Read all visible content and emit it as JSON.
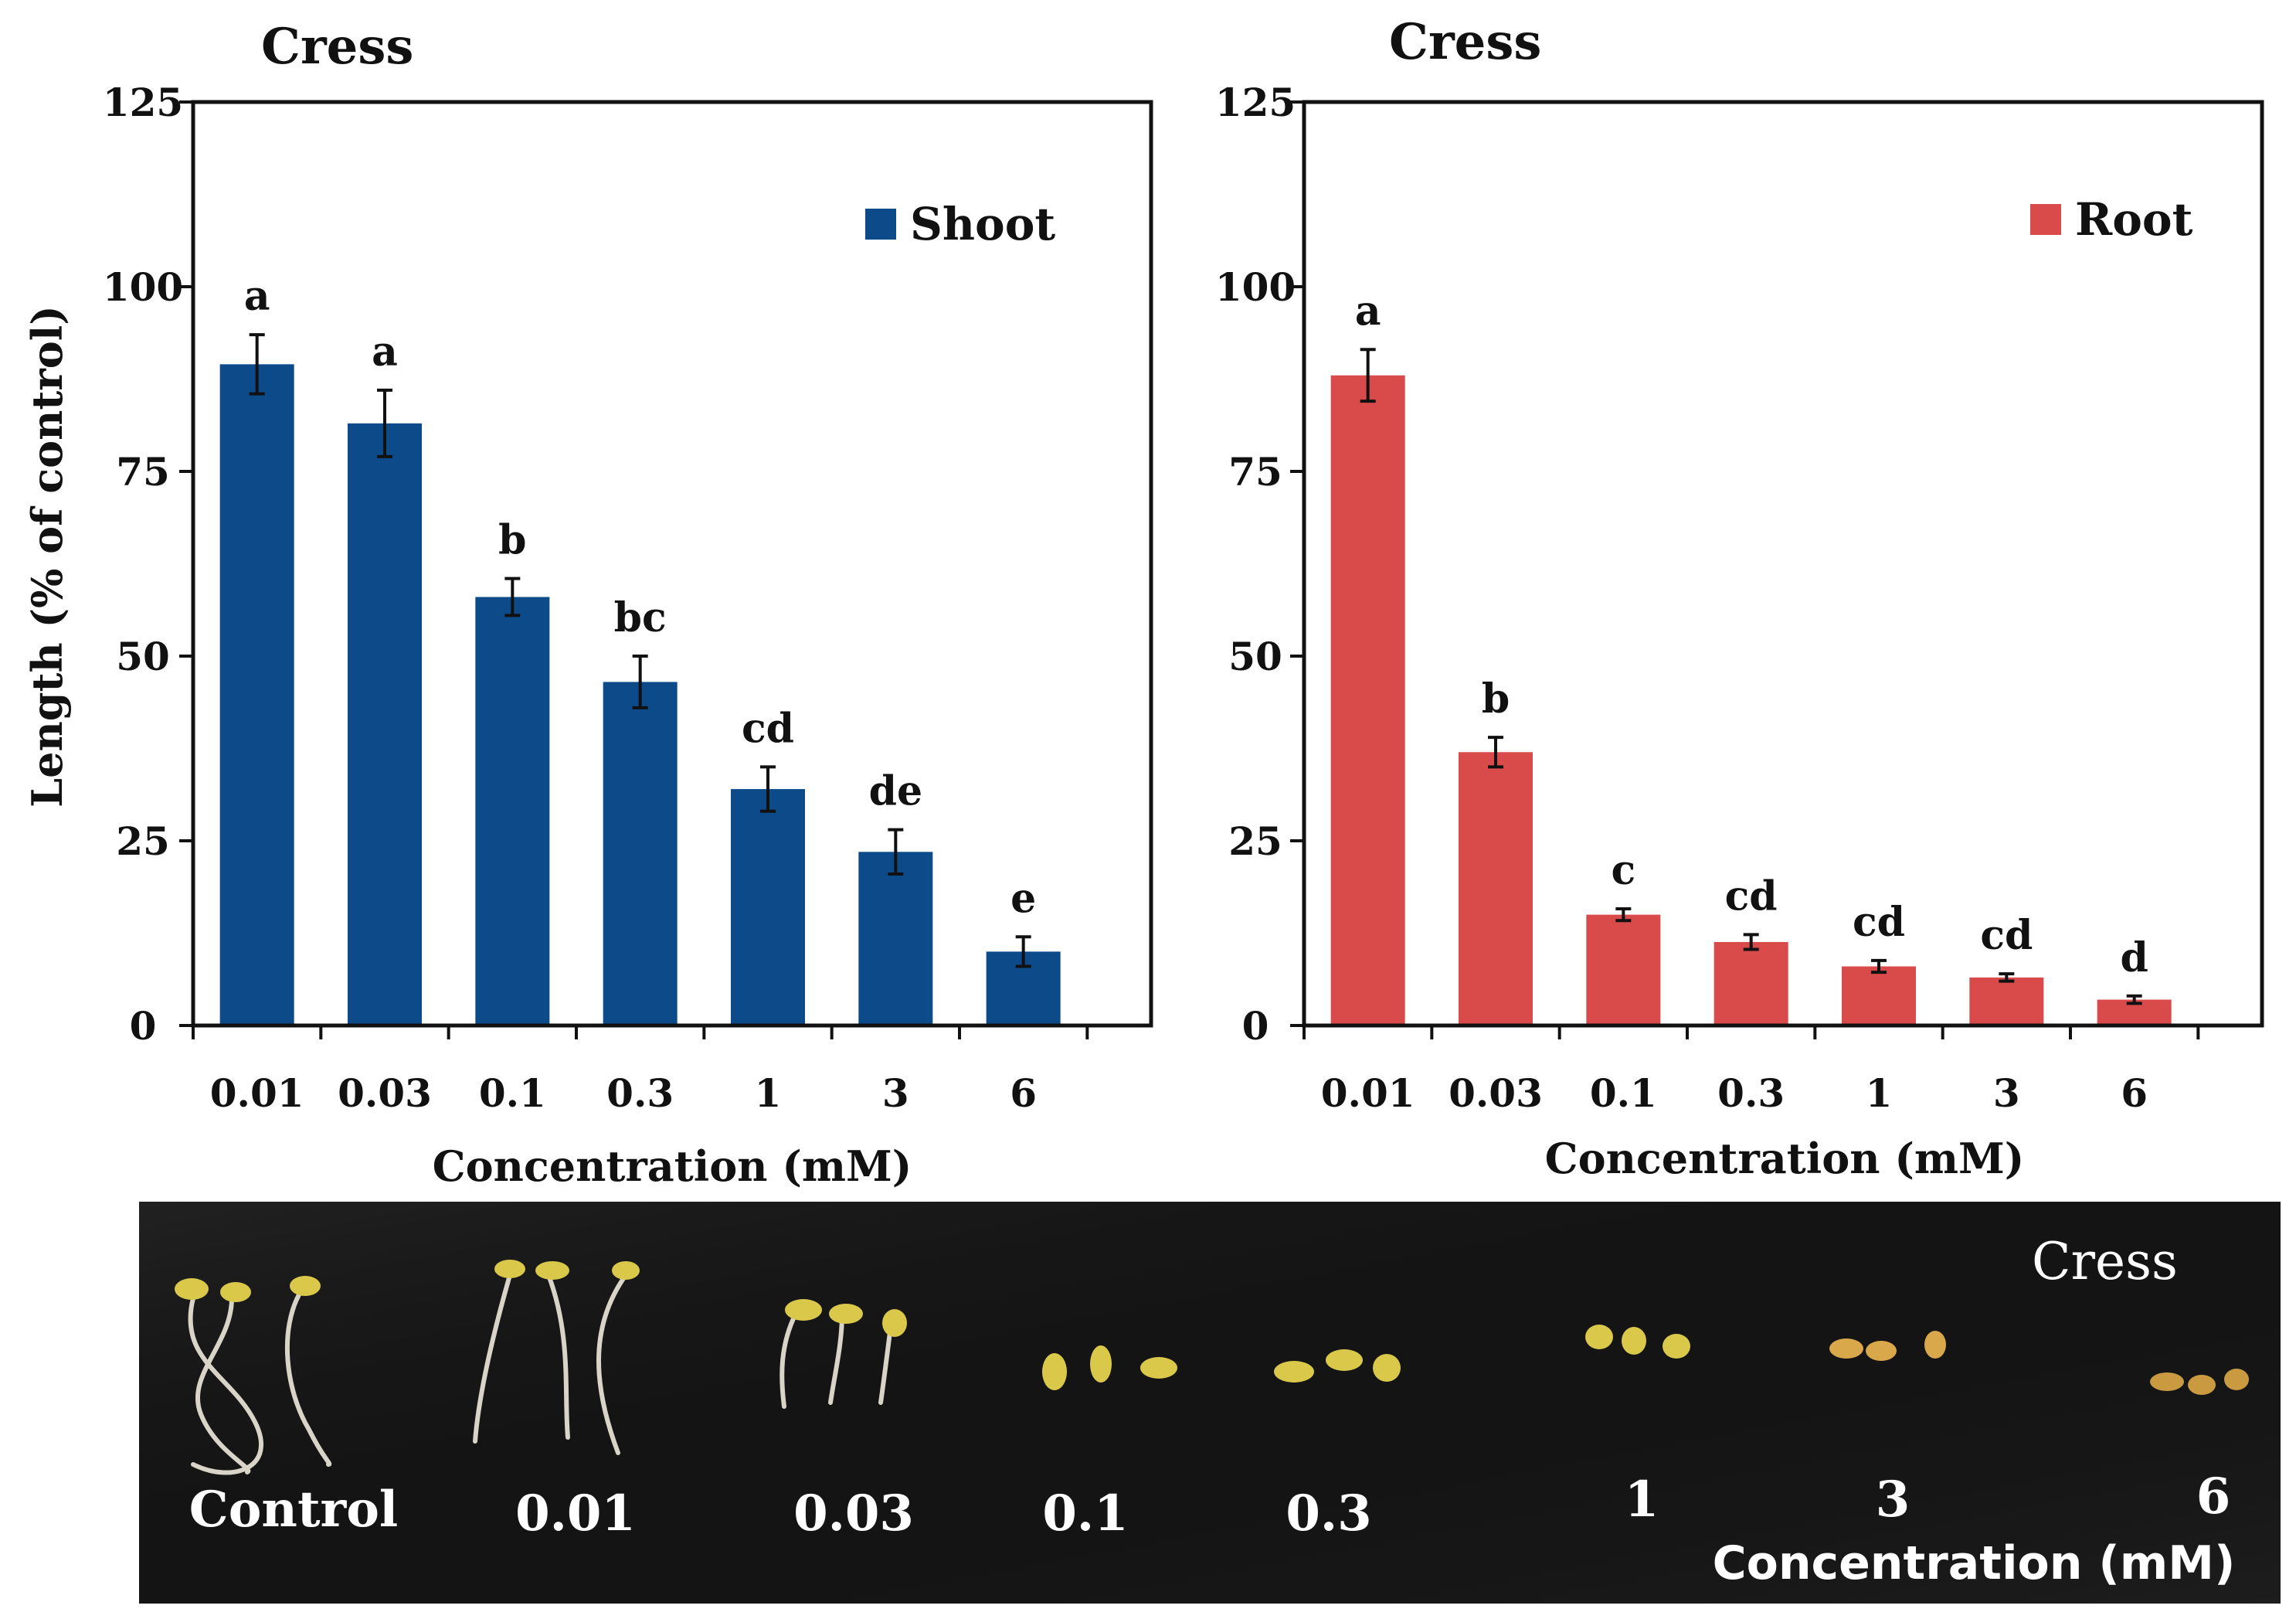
{
  "chart_data": [
    {
      "type": "bar",
      "title": "Cress",
      "xlabel": "Concentration (mM)",
      "ylabel": "Length (% of control)",
      "ylim": [
        0,
        125
      ],
      "yticks": [
        0,
        25,
        50,
        75,
        100,
        125
      ],
      "categories": [
        "0.01",
        "0.03",
        "0.1",
        "0.3",
        "1",
        "3",
        "6"
      ],
      "series": [
        {
          "name": "Shoot",
          "color": "#0c4a8a",
          "values": [
            89.5,
            81.5,
            58,
            46.5,
            32,
            23.5,
            10
          ],
          "errors": [
            4,
            4.5,
            2.5,
            3.5,
            3,
            3,
            2
          ],
          "letters": [
            "a",
            "a",
            "b",
            "bc",
            "cd",
            "de",
            "e"
          ]
        }
      ],
      "legend": "top-right"
    },
    {
      "type": "bar",
      "title": "Cress",
      "xlabel": "Concentration (mM)",
      "ylabel": "",
      "ylim": [
        0,
        125
      ],
      "yticks": [
        0,
        25,
        50,
        75,
        100,
        125
      ],
      "categories": [
        "0.01",
        "0.03",
        "0.1",
        "0.3",
        "1",
        "3",
        "6"
      ],
      "series": [
        {
          "name": "Root",
          "color": "#d94a4a",
          "values": [
            88,
            37,
            15,
            11.3,
            8,
            6.5,
            3.5
          ],
          "errors": [
            3.5,
            2,
            0.8,
            1,
            0.8,
            0.5,
            0.5
          ],
          "letters": [
            "a",
            "b",
            "c",
            "cd",
            "cd",
            "cd",
            "d"
          ]
        }
      ],
      "legend": "top-right"
    }
  ],
  "photo": {
    "title": "Cress",
    "labels": [
      "Control",
      "0.01",
      "0.03",
      "0.1",
      "0.3",
      "1",
      "3",
      "6"
    ],
    "xlabel": "Concentration (mM)",
    "background": "#141414"
  }
}
